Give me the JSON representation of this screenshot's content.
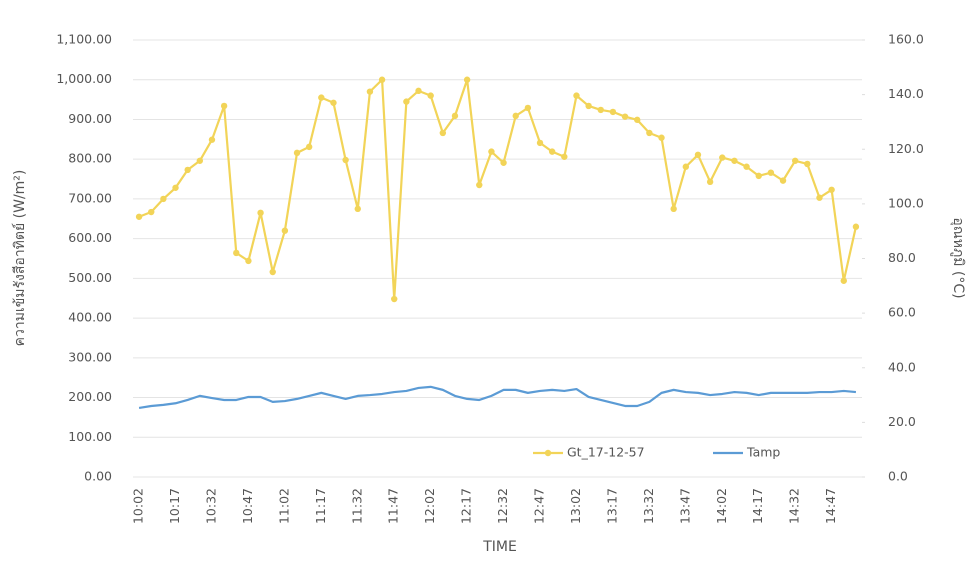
{
  "chart_data": {
    "type": "line",
    "x_label": "TIME",
    "y_label": "ความเข้มรังสีอาทิตย์ (W/m²)",
    "y2_label": "อุณหภูมิ (°C)",
    "categories": [
      "10:02",
      null,
      null,
      "10:17",
      null,
      null,
      "10:32",
      null,
      null,
      "10:47",
      null,
      null,
      "11:02",
      null,
      null,
      "11:17",
      null,
      null,
      "11:32",
      null,
      null,
      "11:47",
      null,
      null,
      "12:02",
      null,
      null,
      "12:17",
      null,
      null,
      "12:32",
      null,
      null,
      "12:47",
      null,
      null,
      "13:02",
      null,
      null,
      "13:17",
      null,
      null,
      "13:32",
      null,
      null,
      "13:47",
      null,
      null,
      "14:02",
      null,
      null,
      "14:17",
      null,
      null,
      "14:32",
      null,
      null,
      "14:47",
      null,
      null
    ],
    "series": [
      {
        "name": "Gt_17-12-57",
        "color": "#f2d458",
        "marker": true,
        "values": [
          655,
          667,
          700,
          728,
          773,
          796,
          849,
          934,
          564,
          544,
          665,
          516,
          620,
          816,
          831,
          955,
          942,
          798,
          675,
          970,
          1000,
          448,
          945,
          972,
          960,
          866,
          909,
          1000,
          735,
          819,
          791,
          909,
          929,
          841,
          819,
          806,
          960,
          934,
          924,
          919,
          907,
          899,
          866,
          854,
          675,
          781,
          811,
          743,
          804,
          796,
          781,
          758,
          766,
          746,
          796,
          788,
          703,
          723,
          494,
          630
        ]
      },
      {
        "name": "Tamp",
        "color": "#5b9bd5",
        "axis": "y2",
        "marker": false,
        "values": [
          25.3,
          26,
          26.4,
          27,
          28.2,
          29.7,
          28.9,
          28.2,
          28.2,
          29.3,
          29.3,
          27.5,
          27.8,
          28.6,
          29.7,
          30.8,
          29.7,
          28.6,
          29.7,
          30,
          30.4,
          31.1,
          31.5,
          32.6,
          33,
          31.9,
          29.7,
          28.6,
          28.2,
          29.7,
          31.9,
          31.9,
          30.8,
          31.5,
          31.9,
          31.5,
          32.2,
          29.3,
          28.2,
          27.1,
          26,
          26,
          27.5,
          30.8,
          31.9,
          31.1,
          30.8,
          30,
          30.4,
          31.1,
          30.8,
          30,
          30.8,
          30.8,
          30.8,
          30.8,
          31.1,
          31.1,
          31.5,
          31.1
        ]
      }
    ],
    "ylim": [
      0,
      1100
    ],
    "yticks": [
      {
        "value": 0,
        "label": "0.00"
      },
      {
        "value": 100,
        "label": "100.00"
      },
      {
        "value": 200,
        "label": "200.00"
      },
      {
        "value": 300,
        "label": "300.00"
      },
      {
        "value": 400,
        "label": "400.00"
      },
      {
        "value": 500,
        "label": "500.00"
      },
      {
        "value": 600,
        "label": "600.00"
      },
      {
        "value": 700,
        "label": "700.00"
      },
      {
        "value": 800,
        "label": "800.00"
      },
      {
        "value": 900,
        "label": "900.00"
      },
      {
        "value": 1000,
        "label": "1,000.00"
      },
      {
        "value": 1100,
        "label": "1,100.00"
      }
    ],
    "y2lim": [
      0,
      160
    ],
    "y2ticks": [
      {
        "value": 0,
        "label": "0.0"
      },
      {
        "value": 20,
        "label": "20.0"
      },
      {
        "value": 40,
        "label": "40.0"
      },
      {
        "value": 60,
        "label": "60.0"
      },
      {
        "value": 80,
        "label": "80.0"
      },
      {
        "value": 100,
        "label": "100.0"
      },
      {
        "value": 120,
        "label": "120.0"
      },
      {
        "value": 140,
        "label": "140.0"
      },
      {
        "value": 160,
        "label": "160.0"
      }
    ],
    "grid": true
  }
}
